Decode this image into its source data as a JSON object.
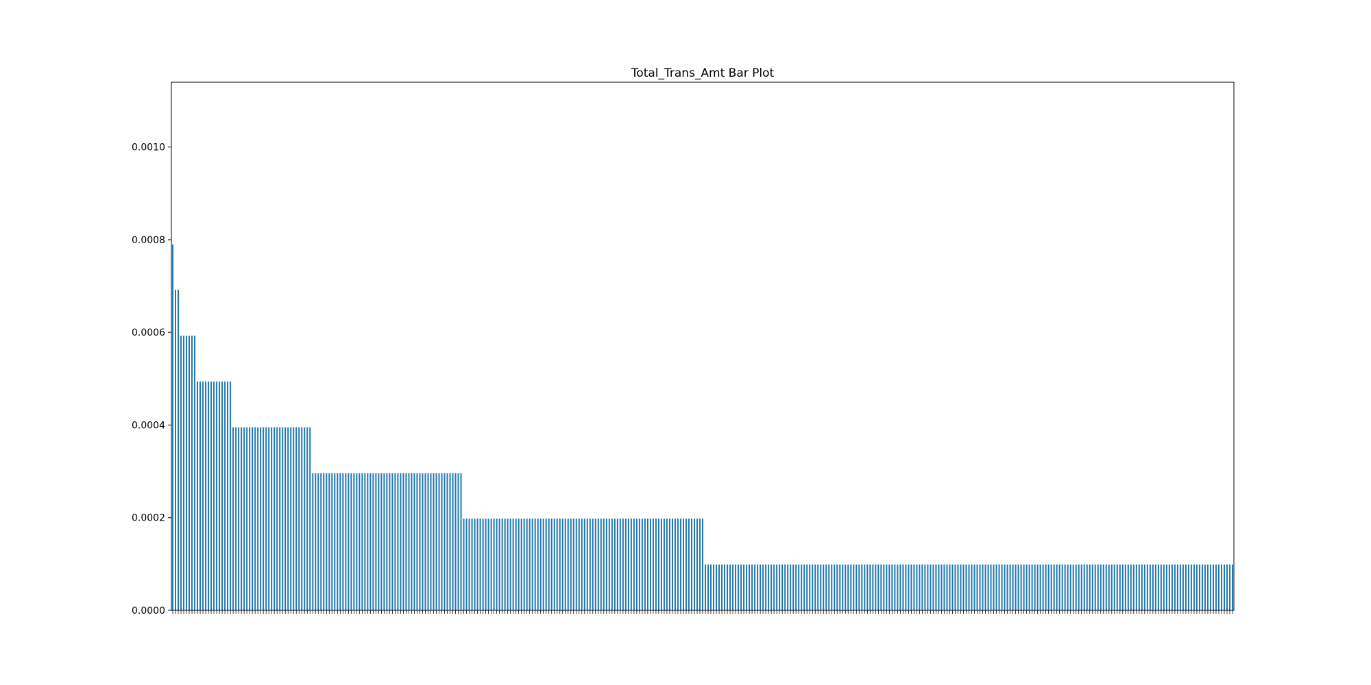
{
  "chart_data": {
    "type": "bar",
    "title": "Total_Trans_Amt Bar Plot",
    "xlabel": "",
    "ylabel": "",
    "ylim": [
      0,
      0.00114
    ],
    "grid": false,
    "legend": "none",
    "bar_color": "#1f77b4",
    "yticks": [
      {
        "value": 0.0,
        "label": "0.0000"
      },
      {
        "value": 0.0002,
        "label": "0.0002"
      },
      {
        "value": 0.0004,
        "label": "0.0004"
      },
      {
        "value": 0.0006,
        "label": "0.0006"
      },
      {
        "value": 0.0008,
        "label": "0.0008"
      },
      {
        "value": 0.001,
        "label": "0.0010"
      }
    ],
    "value_groups": [
      {
        "value": 0.00079,
        "count": 1
      },
      {
        "value": 0.000692,
        "count": 2
      },
      {
        "value": 0.000593,
        "count": 6
      },
      {
        "value": 0.000494,
        "count": 13
      },
      {
        "value": 0.000395,
        "count": 29
      },
      {
        "value": 0.000296,
        "count": 55
      },
      {
        "value": 0.000198,
        "count": 88
      },
      {
        "value": 9.88e-05,
        "count": 193
      }
    ]
  }
}
